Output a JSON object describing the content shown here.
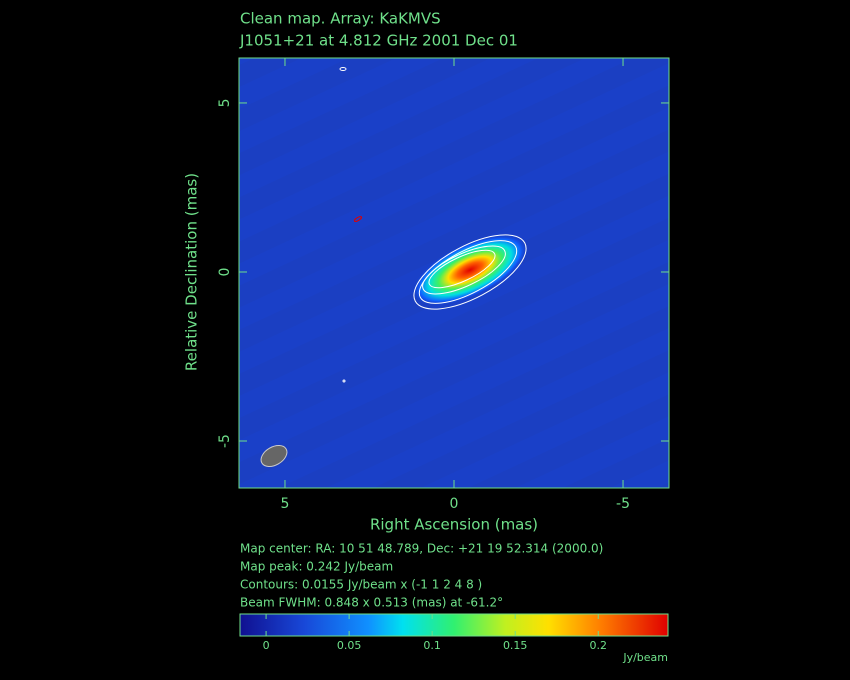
{
  "chart_data": {
    "type": "image",
    "title": "Clean map.  Array: KaKMVS",
    "subtitle": "J1051+21 at 4.812 GHz 2001 Dec 01",
    "x_label": "Right Ascension  (mas)",
    "y_label": "Relative Declination  (mas)",
    "xlim": [
      6.36,
      -6.36
    ],
    "xticks": [
      5,
      0,
      -5
    ],
    "ylim": [
      -6.39,
      6.33
    ],
    "yticks": [
      5,
      0,
      -5
    ],
    "colorbar": {
      "label": "Jy/beam",
      "lim": [
        -0.0157,
        0.242
      ],
      "ticks": [
        0,
        0.05,
        0.1,
        0.15,
        0.2
      ]
    },
    "notes": [
      "Map center:  RA: 10 51 48.789,  Dec: +21 19 52.314 (2000.0)",
      "Map peak: 0.242 Jy/beam",
      "Contours: 0.0155 Jy/beam x (-1 1 2 4 8 )",
      "Beam FWHM: 0.848 x 0.513 (mas) at -61.2°"
    ]
  }
}
